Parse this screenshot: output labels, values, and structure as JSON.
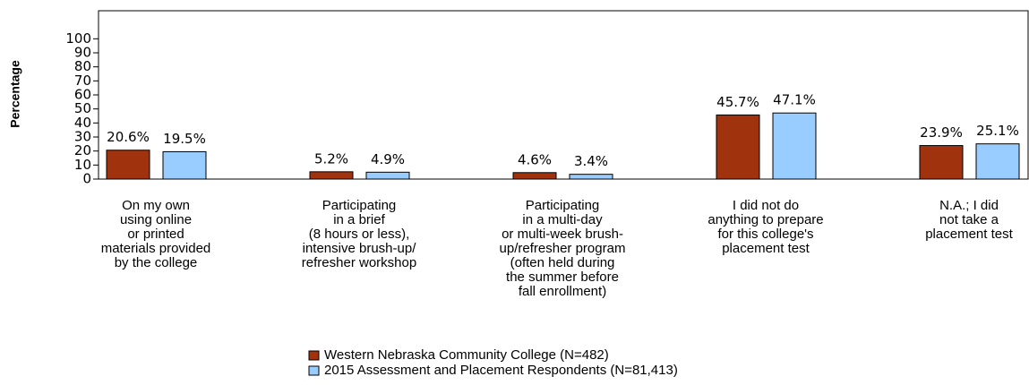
{
  "chart_data": {
    "type": "bar",
    "y_label": "Percentage",
    "categories": [
      "On my own\nusing online\nor printed\nmaterials provided\nby the college",
      "Participating\nin a brief\n(8 hours or less),\nintensive brush-up/\nrefresher workshop",
      "Participating\nin a multi-day\nor multi-week brush-\nup/refresher program\n(often held during\nthe summer before\nfall enrollment)",
      "I did not do\nanything to prepare\nfor this college's\nplacement test",
      "N.A.; I did\nnot take a\nplacement test"
    ],
    "series": [
      {
        "name": "Western Nebraska Community College (N=482)",
        "color": "#a0320e",
        "values": [
          20.6,
          5.2,
          4.6,
          45.7,
          23.9
        ],
        "value_labels": [
          "20.6%",
          "5.2%",
          "4.6%",
          "45.7%",
          "23.9%"
        ]
      },
      {
        "name": "2015 Assessment and Placement Respondents (N=81,413)",
        "color": "#99ccff",
        "values": [
          19.5,
          4.9,
          3.4,
          47.1,
          25.1
        ],
        "value_labels": [
          "19.5%",
          "4.9%",
          "3.4%",
          "47.1%",
          "25.1%"
        ]
      }
    ],
    "ylim": [
      0,
      120
    ],
    "yticks": [
      0,
      10,
      20,
      30,
      40,
      50,
      60,
      70,
      80,
      90,
      100
    ]
  }
}
